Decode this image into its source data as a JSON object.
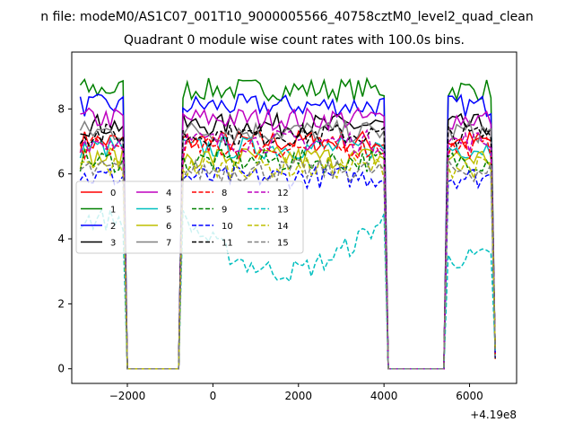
{
  "chart_data": {
    "type": "line",
    "suptitle": "n file: modeM0/AS1C07_001T10_9000005566_40758cztM0_level2_quad_clean",
    "title": "Quadrant 0 module wise count rates with 100.0s bins.",
    "xlabel": "",
    "ylabel": "",
    "offset_label": "+4.19e8",
    "xlim": [
      -3300,
      7100
    ],
    "ylim": [
      -0.45,
      9.75
    ],
    "xticks": [
      -2000,
      0,
      2000,
      4000,
      6000
    ],
    "xtick_labels": [
      "−2000",
      "0",
      "2000",
      "4000",
      "6000"
    ],
    "yticks": [
      0,
      2,
      4,
      6,
      8
    ],
    "ytick_labels": [
      "0",
      "2",
      "4",
      "6",
      "8"
    ],
    "grid": false,
    "legend": {
      "placement": "center-left",
      "columns": 4
    },
    "series": [
      {
        "name": "0",
        "color": "#ff0000",
        "dash": "solid",
        "base": 7.0
      },
      {
        "name": "1",
        "color": "#008000",
        "dash": "solid",
        "base": 8.6
      },
      {
        "name": "2",
        "color": "#0000ff",
        "dash": "solid",
        "base": 8.1
      },
      {
        "name": "3",
        "color": "#000000",
        "dash": "solid",
        "base": 7.5
      },
      {
        "name": "4",
        "color": "#bf00bf",
        "dash": "solid",
        "base": 7.7
      },
      {
        "name": "5",
        "color": "#00bfbf",
        "dash": "solid",
        "base": 6.8
      },
      {
        "name": "6",
        "color": "#bfbf00",
        "dash": "solid",
        "base": 6.5
      },
      {
        "name": "7",
        "color": "#808080",
        "dash": "solid",
        "base": 7.3
      },
      {
        "name": "8",
        "color": "#ff0000",
        "dash": "dashed",
        "base": 6.8
      },
      {
        "name": "9",
        "color": "#008000",
        "dash": "dashed",
        "base": 6.4
      },
      {
        "name": "10",
        "color": "#0000ff",
        "dash": "dashed",
        "base": 5.9
      },
      {
        "name": "11",
        "color": "#000000",
        "dash": "dashed",
        "base": 7.2
      },
      {
        "name": "12",
        "color": "#bf00bf",
        "dash": "dashed",
        "base": 7.0
      },
      {
        "name": "13",
        "color": "#00bfbf",
        "dash": "dashed",
        "base": 4.6
      },
      {
        "name": "14",
        "color": "#bfbf00",
        "dash": "dashed",
        "base": 6.2
      },
      {
        "name": "15",
        "color": "#808080",
        "dash": "dashed",
        "base": 6.1
      }
    ],
    "segments": [
      {
        "start": -3100,
        "end": -2100,
        "on": true
      },
      {
        "start": -2000,
        "end": -800,
        "on": false
      },
      {
        "start": -700,
        "end": 4000,
        "on": true
      },
      {
        "start": 4100,
        "end": 5400,
        "on": false
      },
      {
        "start": 5500,
        "end": 6600,
        "on": true
      }
    ],
    "step": 100,
    "end_value": 0.3,
    "noise": 0.35
  }
}
